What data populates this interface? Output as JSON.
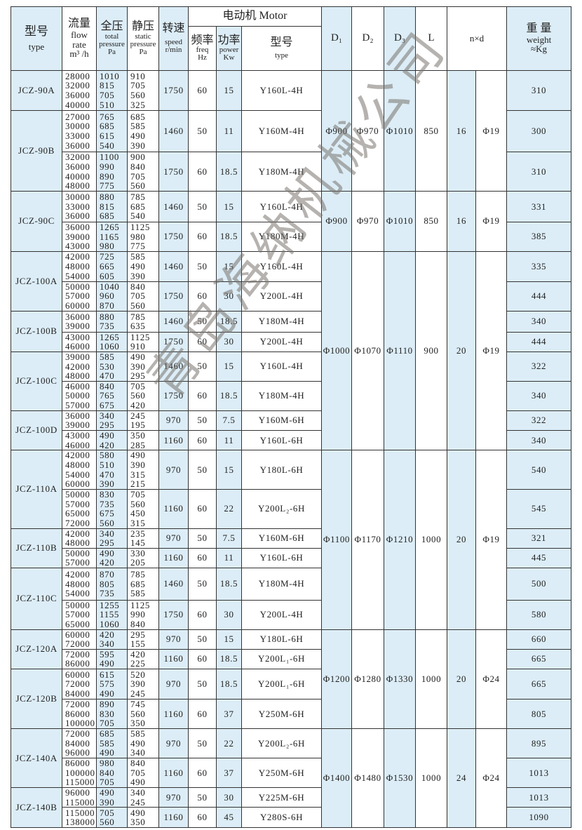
{
  "header": {
    "type_zh": "型号",
    "type_en": "type",
    "flow_zh": "流量",
    "flow_en1": "flow",
    "flow_en2": "rate",
    "flow_unit": "m³ /h",
    "total_zh": "全压",
    "total_en1": "total",
    "total_en2": "pressure",
    "total_unit": "Pa",
    "static_zh": "静压",
    "static_en1": "static",
    "static_en2": "pressure",
    "static_unit": "Pa",
    "speed_zh": "转速",
    "speed_en": "speed",
    "speed_unit": "r/min",
    "motor": "电动机 Motor",
    "freq_zh": "频率",
    "freq_en": "freq",
    "freq_unit": "Hz",
    "power_zh": "功率",
    "power_en": "power",
    "power_unit": "Kw",
    "motor_type_zh": "型号",
    "motor_type_en": "type",
    "d1": "D₁",
    "d2": "D₂",
    "d3": "D₃",
    "l": "L",
    "nxd": "n×d",
    "weight_zh": "重 量",
    "weight_en": "weight",
    "weight_unit": "≈Kg"
  },
  "watermark": "青岛海纳机械公司",
  "colors": {
    "shade": "#dcedf7",
    "border": "#333333"
  },
  "groups": [
    {
      "d1": "Φ900",
      "d2": "Φ970",
      "d3": "Φ1010",
      "l": "850",
      "n": "16",
      "d": "Φ19",
      "models": [
        {
          "type": "JCZ-90A",
          "configs": [
            {
              "flow": [
                "28000",
                "32000",
                "36000",
                "40000"
              ],
              "total": [
                "1010",
                "815",
                "705",
                "510"
              ],
              "static": [
                "910",
                "705",
                "560",
                "325"
              ],
              "speed": "1750",
              "freq": "60",
              "power": "15",
              "motor": "Y160L-4H",
              "weight": "310"
            }
          ]
        },
        {
          "type": "JCZ-90B",
          "configs": [
            {
              "flow": [
                "27000",
                "30000",
                "33000",
                "36000"
              ],
              "total": [
                "765",
                "685",
                "615",
                "540"
              ],
              "static": [
                "685",
                "585",
                "490",
                "390"
              ],
              "speed": "1460",
              "freq": "50",
              "power": "11",
              "motor": "Y160M-4H",
              "weight": "300"
            },
            {
              "flow": [
                "32000",
                "36000",
                "40000",
                "48000"
              ],
              "total": [
                "1100",
                "990",
                "890",
                "775"
              ],
              "static": [
                "900",
                "840",
                "705",
                "560"
              ],
              "speed": "1750",
              "freq": "60",
              "power": "18.5",
              "motor": "Y180M-4H",
              "weight": "310"
            }
          ]
        }
      ]
    },
    {
      "d1": "Φ900",
      "d2": "Φ970",
      "d3": "Φ1010",
      "l": "850",
      "n": "16",
      "d": "Φ19",
      "models": [
        {
          "type": "JCZ-90C",
          "configs": [
            {
              "flow": [
                "30000",
                "33000",
                "36000"
              ],
              "total": [
                "880",
                "815",
                "685"
              ],
              "static": [
                "785",
                "685",
                "540"
              ],
              "speed": "1460",
              "freq": "50",
              "power": "15",
              "motor": "Y160L-4H",
              "weight": "331"
            },
            {
              "flow": [
                "36000",
                "39000",
                "43000"
              ],
              "total": [
                "1265",
                "1165",
                "980"
              ],
              "static": [
                "1125",
                "980",
                "775"
              ],
              "speed": "1750",
              "freq": "60",
              "power": "18.5",
              "motor": "Y180M-4H",
              "weight": "385"
            }
          ]
        }
      ]
    },
    {
      "d1": "Φ1000",
      "d2": "Φ1070",
      "d3": "Φ1110",
      "l": "900",
      "n": "20",
      "d": "Φ19",
      "models": [
        {
          "type": "JCZ-100A",
          "configs": [
            {
              "flow": [
                "42000",
                "48000",
                "54000"
              ],
              "total": [
                "725",
                "665",
                "605"
              ],
              "static": [
                "585",
                "490",
                "390"
              ],
              "speed": "1460",
              "freq": "50",
              "power": "15",
              "motor": "Y160L-4H",
              "weight": "335"
            },
            {
              "flow": [
                "50000",
                "57000",
                "60000"
              ],
              "total": [
                "1040",
                "960",
                "870"
              ],
              "static": [
                "840",
                "705",
                "560"
              ],
              "speed": "1750",
              "freq": "60",
              "power": "30",
              "motor": "Y200L-4H",
              "weight": "444"
            }
          ]
        },
        {
          "type": "JCZ-100B",
          "configs": [
            {
              "flow": [
                "36000",
                "39000"
              ],
              "total": [
                "880",
                "735"
              ],
              "static": [
                "785",
                "635"
              ],
              "speed": "1460",
              "freq": "50",
              "power": "18.5",
              "motor": "Y180M-4H",
              "weight": "340"
            },
            {
              "flow": [
                "43000",
                "46000"
              ],
              "total": [
                "1265",
                "1060"
              ],
              "static": [
                "1125",
                "910"
              ],
              "speed": "1750",
              "freq": "60",
              "power": "30",
              "motor": "Y200L-4H",
              "weight": "444"
            }
          ]
        },
        {
          "type": "JCZ-100C",
          "configs": [
            {
              "flow": [
                "39000",
                "42000",
                "48000"
              ],
              "total": [
                "585",
                "530",
                "470"
              ],
              "static": [
                "490",
                "390",
                "295"
              ],
              "speed": "1460",
              "freq": "50",
              "power": "15",
              "motor": "Y160L-4H",
              "weight": "322"
            },
            {
              "flow": [
                "46000",
                "50000",
                "57000"
              ],
              "total": [
                "840",
                "765",
                "675"
              ],
              "static": [
                "705",
                "560",
                "420"
              ],
              "speed": "1750",
              "freq": "60",
              "power": "18.5",
              "motor": "Y180M-4H",
              "weight": "340"
            }
          ]
        },
        {
          "type": "JCZ-100D",
          "configs": [
            {
              "flow": [
                "36000",
                "39000"
              ],
              "total": [
                "340",
                "295"
              ],
              "static": [
                "245",
                "195"
              ],
              "speed": "970",
              "freq": "50",
              "power": "7.5",
              "motor": "Y160M-6H",
              "weight": "322"
            },
            {
              "flow": [
                "43000",
                "46000"
              ],
              "total": [
                "490",
                "420"
              ],
              "static": [
                "350",
                "285"
              ],
              "speed": "1160",
              "freq": "60",
              "power": "11",
              "motor": "Y160L-6H",
              "weight": "340"
            }
          ]
        }
      ]
    },
    {
      "d1": "Φ1100",
      "d2": "Φ1170",
      "d3": "Φ1210",
      "l": "1000",
      "n": "20",
      "d": "Φ19",
      "models": [
        {
          "type": "JCZ-110A",
          "configs": [
            {
              "flow": [
                "42000",
                "48000",
                "54000",
                "60000"
              ],
              "total": [
                "580",
                "510",
                "470",
                "390"
              ],
              "static": [
                "490",
                "390",
                "315",
                "215"
              ],
              "speed": "970",
              "freq": "50",
              "power": "15",
              "motor": "Y180L-6H",
              "weight": "540"
            },
            {
              "flow": [
                "50000",
                "57000",
                "65000",
                "72000"
              ],
              "total": [
                "830",
                "735",
                "675",
                "560"
              ],
              "static": [
                "705",
                "560",
                "450",
                "315"
              ],
              "speed": "1160",
              "freq": "60",
              "power": "22",
              "motor": "Y200L₂-6H",
              "weight": "545"
            }
          ]
        },
        {
          "type": "JCZ-110B",
          "configs": [
            {
              "flow": [
                "42000",
                "48000"
              ],
              "total": [
                "340",
                "295"
              ],
              "static": [
                "235",
                "145"
              ],
              "speed": "970",
              "freq": "50",
              "power": "7.5",
              "motor": "Y160M-6H",
              "weight": "321"
            },
            {
              "flow": [
                "50000",
                "57000"
              ],
              "total": [
                "490",
                "420"
              ],
              "static": [
                "330",
                "205"
              ],
              "speed": "1160",
              "freq": "60",
              "power": "11",
              "motor": "Y160L-6H",
              "weight": "445"
            }
          ]
        },
        {
          "type": "JCZ-110C",
          "configs": [
            {
              "flow": [
                "42000",
                "48000",
                "54000"
              ],
              "total": [
                "870",
                "805",
                "735"
              ],
              "static": [
                "785",
                "685",
                "585"
              ],
              "speed": "1460",
              "freq": "50",
              "power": "18.5",
              "motor": "Y180M-4H",
              "weight": "500"
            },
            {
              "flow": [
                "50000",
                "57000",
                "65000"
              ],
              "total": [
                "1255",
                "1155",
                "1060"
              ],
              "static": [
                "1125",
                "990",
                "840"
              ],
              "speed": "1750",
              "freq": "60",
              "power": "30",
              "motor": "Y200L-4H",
              "weight": "580"
            }
          ]
        }
      ]
    },
    {
      "d1": "Φ1200",
      "d2": "Φ1280",
      "d3": "Φ1330",
      "l": "1000",
      "n": "20",
      "d": "Φ24",
      "models": [
        {
          "type": "JCZ-120A",
          "configs": [
            {
              "flow": [
                "60000",
                "72000"
              ],
              "total": [
                "420",
                "340"
              ],
              "static": [
                "295",
                "155"
              ],
              "speed": "970",
              "freq": "50",
              "power": "15",
              "motor": "Y180L-6H",
              "weight": "660"
            },
            {
              "flow": [
                "72000",
                "86000"
              ],
              "total": [
                "595",
                "490"
              ],
              "static": [
                "420",
                "225"
              ],
              "speed": "1160",
              "freq": "60",
              "power": "18.5",
              "motor": "Y200L₁-6H",
              "weight": "665"
            }
          ]
        },
        {
          "type": "JCZ-120B",
          "configs": [
            {
              "flow": [
                "60000",
                "72000",
                "84000"
              ],
              "total": [
                "615",
                "575",
                "490"
              ],
              "static": [
                "520",
                "390",
                "245"
              ],
              "speed": "970",
              "freq": "50",
              "power": "18.5",
              "motor": "Y200L₁-6H",
              "weight": "665"
            },
            {
              "flow": [
                "72000",
                "86000",
                "100000"
              ],
              "total": [
                "890",
                "830",
                "705"
              ],
              "static": [
                "745",
                "560",
                "350"
              ],
              "speed": "1160",
              "freq": "60",
              "power": "37",
              "motor": "Y250M-6H",
              "weight": "805"
            }
          ]
        }
      ]
    },
    {
      "d1": "Φ1400",
      "d2": "Φ1480",
      "d3": "Φ1530",
      "l": "1000",
      "n": "24",
      "d": "Φ24",
      "models": [
        {
          "type": "JCZ-140A",
          "configs": [
            {
              "flow": [
                "72000",
                "84000",
                "96000"
              ],
              "total": [
                "685",
                "585",
                "490"
              ],
              "static": [
                "585",
                "490",
                "340"
              ],
              "speed": "970",
              "freq": "50",
              "power": "22",
              "motor": "Y200L₂-6H",
              "weight": "895"
            },
            {
              "flow": [
                "86000",
                "100000",
                "115000"
              ],
              "total": [
                "980",
                "840",
                "705"
              ],
              "static": [
                "840",
                "705",
                "490"
              ],
              "speed": "1160",
              "freq": "60",
              "power": "37",
              "motor": "Y250M-6H",
              "weight": "1013"
            }
          ]
        },
        {
          "type": "JCZ-140B",
          "configs": [
            {
              "flow": [
                "96000",
                "115000"
              ],
              "total": [
                "490",
                "390"
              ],
              "static": [
                "340",
                "245"
              ],
              "speed": "970",
              "freq": "50",
              "power": "30",
              "motor": "Y225M-6H",
              "weight": "1013"
            },
            {
              "flow": [
                "115000",
                "138000"
              ],
              "total": [
                "705",
                "560"
              ],
              "static": [
                "490",
                "350"
              ],
              "speed": "1160",
              "freq": "60",
              "power": "45",
              "motor": "Y280S-6H",
              "weight": "1090"
            }
          ]
        }
      ]
    }
  ]
}
